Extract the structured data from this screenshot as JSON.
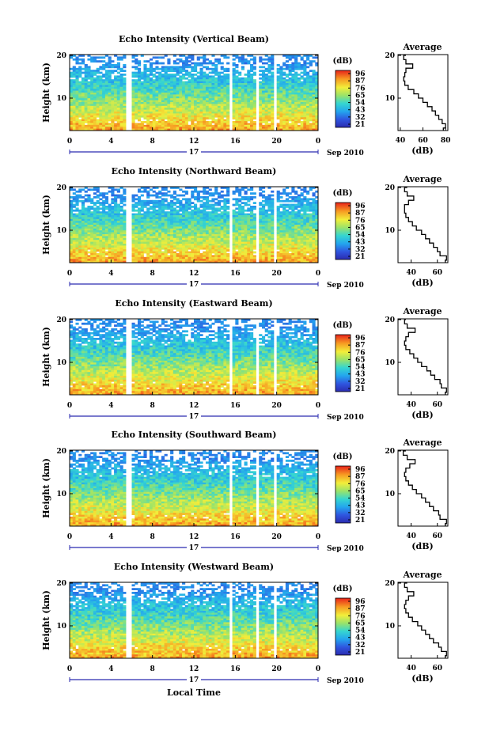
{
  "chart_data": {
    "type": "heatmap",
    "shared": {
      "x_ticks": [
        "0",
        "4",
        "8",
        "12",
        "16",
        "20",
        "0"
      ],
      "xlim": [
        0,
        24
      ],
      "ylabel": "Height (km)",
      "y_ticks": [
        "20",
        "10"
      ],
      "ylim": [
        2,
        20
      ],
      "date_day": "17",
      "date_label": "Sep 2010",
      "xlabel": "Local Time",
      "data_gaps_hours": [
        [
          5.5,
          6.0
        ],
        [
          15.3,
          15.8
        ],
        [
          17.9,
          18.3
        ],
        [
          19.6,
          20.0
        ]
      ],
      "colorbar_unit": "(dB)",
      "colorbar_ticks": [
        "96",
        "87",
        "76",
        "65",
        "54",
        "43",
        "32",
        "21"
      ],
      "colorbar_range": [
        21,
        96
      ],
      "avg_title": "Average",
      "avg_xlabel": "(dB)",
      "avg_y_ticks": [
        "20",
        "10"
      ]
    },
    "panels": [
      {
        "title": "Echo Intensity (Vertical Beam)",
        "avg_x_ticks": [
          "40",
          "60",
          "80"
        ],
        "avg_xlim": [
          38,
          82
        ],
        "avg_profile": {
          "height_km": [
            2.5,
            3,
            4,
            5,
            6,
            7,
            8,
            9,
            10,
            11,
            12,
            13,
            14,
            15,
            16,
            17,
            18,
            19,
            20
          ],
          "value_db": [
            78,
            80,
            77,
            74,
            71,
            68,
            64,
            60,
            56,
            52,
            47,
            44,
            43,
            44,
            45,
            51,
            45,
            43,
            45
          ]
        }
      },
      {
        "title": "Echo Intensity (Northward Beam)",
        "avg_x_ticks": [
          "40",
          "60"
        ],
        "avg_xlim": [
          30,
          68
        ],
        "avg_profile": {
          "height_km": [
            2.5,
            3,
            4,
            5,
            6,
            7,
            8,
            9,
            10,
            11,
            12,
            13,
            14,
            15,
            16,
            17,
            18,
            19,
            20
          ],
          "value_db": [
            66,
            67,
            62,
            60,
            57,
            54,
            51,
            48,
            44,
            41,
            38,
            36,
            35,
            35,
            38,
            42,
            37,
            35,
            37
          ]
        }
      },
      {
        "title": "Echo Intensity (Eastward Beam)",
        "avg_x_ticks": [
          "40",
          "60"
        ],
        "avg_xlim": [
          30,
          68
        ],
        "avg_profile": {
          "height_km": [
            2.5,
            3,
            4,
            5,
            6,
            7,
            8,
            9,
            10,
            11,
            12,
            13,
            14,
            15,
            16,
            17,
            18,
            19,
            20
          ],
          "value_db": [
            66,
            67,
            63,
            62,
            58,
            55,
            52,
            48,
            45,
            42,
            39,
            36,
            35,
            36,
            38,
            43,
            37,
            35,
            36
          ]
        }
      },
      {
        "title": "Echo Intensity (Southward Beam)",
        "avg_x_ticks": [
          "40",
          "60"
        ],
        "avg_xlim": [
          30,
          68
        ],
        "avg_profile": {
          "height_km": [
            2.5,
            3,
            4,
            5,
            6,
            7,
            8,
            9,
            10,
            11,
            12,
            13,
            14,
            15,
            16,
            17,
            18,
            19,
            20
          ],
          "value_db": [
            66,
            67,
            62,
            61,
            57,
            54,
            51,
            48,
            44,
            41,
            38,
            36,
            35,
            36,
            39,
            43,
            37,
            34,
            36
          ]
        }
      },
      {
        "title": "Echo Intensity (Westward Beam)",
        "avg_x_ticks": [
          "40",
          "60"
        ],
        "avg_xlim": [
          30,
          68
        ],
        "avg_profile": {
          "height_km": [
            2.5,
            3,
            4,
            5,
            6,
            7,
            8,
            9,
            10,
            11,
            12,
            13,
            14,
            15,
            16,
            17,
            18,
            19,
            20
          ],
          "value_db": [
            66,
            67,
            63,
            61,
            57,
            54,
            51,
            48,
            45,
            41,
            38,
            36,
            35,
            36,
            38,
            42,
            37,
            35,
            37
          ]
        }
      }
    ]
  }
}
